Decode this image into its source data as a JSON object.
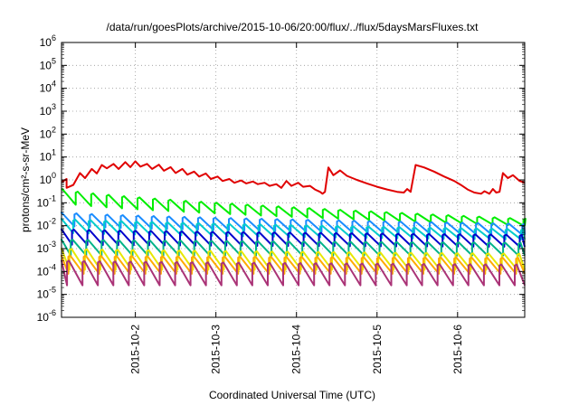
{
  "chart_data": {
    "type": "line",
    "title": "/data/run/goesPlots/archive/2015-10-06/20:00/flux/../flux/5daysMarsFluxes.txt",
    "xlabel": "Coordinated Universal Time (UTC)",
    "ylabel": "protons/cm²-s-sr-MeV",
    "scale": {
      "y": "log"
    },
    "grid": true,
    "legend": "none",
    "ylim": [
      1e-06,
      1000000.0
    ],
    "y_ticks": [
      {
        "value": 1e-06,
        "base": "10",
        "exp": "-6"
      },
      {
        "value": 1e-05,
        "base": "10",
        "exp": "-5"
      },
      {
        "value": 0.0001,
        "base": "10",
        "exp": "-4"
      },
      {
        "value": 0.001,
        "base": "10",
        "exp": "-3"
      },
      {
        "value": 0.01,
        "base": "10",
        "exp": "-2"
      },
      {
        "value": 0.1,
        "base": "10",
        "exp": "-1"
      },
      {
        "value": 1,
        "base": "10",
        "exp": "0"
      },
      {
        "value": 10.0,
        "base": "10",
        "exp": "1"
      },
      {
        "value": 100.0,
        "base": "10",
        "exp": "2"
      },
      {
        "value": 1000.0,
        "base": "10",
        "exp": "3"
      },
      {
        "value": 10000.0,
        "base": "10",
        "exp": "4"
      },
      {
        "value": 100000.0,
        "base": "10",
        "exp": "5"
      },
      {
        "value": 1000000.0,
        "base": "10",
        "exp": "6"
      }
    ],
    "xlim": [
      "2015-10-01T02:00",
      "2015-10-06T20:00"
    ],
    "x_ticks": [
      {
        "value": "2015-10-02T00:00",
        "label": "2015-10-2"
      },
      {
        "value": "2015-10-03T00:00",
        "label": "2015-10-3"
      },
      {
        "value": "2015-10-04T00:00",
        "label": "2015-10-4"
      },
      {
        "value": "2015-10-05T00:00",
        "label": "2015-10-5"
      },
      {
        "value": "2015-10-06T00:00",
        "label": "2015-10-6"
      }
    ],
    "series": [
      {
        "color": "#e00000",
        "points": [
          [
            "2015-10-01T02:00",
            0.8
          ],
          [
            "2015-10-01T03:30",
            1.1
          ],
          [
            "2015-10-01T03:30",
            0.45
          ],
          [
            "2015-10-01T05:30",
            0.6
          ],
          [
            "2015-10-01T07:30",
            2.0
          ],
          [
            "2015-10-01T09:00",
            1.2
          ],
          [
            "2015-10-01T11:00",
            3.0
          ],
          [
            "2015-10-01T12:30",
            1.9
          ],
          [
            "2015-10-01T14:00",
            4.5
          ],
          [
            "2015-10-01T15:30",
            3.2
          ],
          [
            "2015-10-01T17:30",
            5.0
          ],
          [
            "2015-10-01T19:00",
            3.0
          ],
          [
            "2015-10-01T21:00",
            6.0
          ],
          [
            "2015-10-01T22:30",
            3.6
          ],
          [
            "2015-10-02T00:00",
            6.5
          ],
          [
            "2015-10-02T01:30",
            3.8
          ],
          [
            "2015-10-02T03:30",
            5.0
          ],
          [
            "2015-10-02T05:00",
            3.0
          ],
          [
            "2015-10-02T07:00",
            4.6
          ],
          [
            "2015-10-02T08:30",
            2.5
          ],
          [
            "2015-10-02T10:30",
            3.6
          ],
          [
            "2015-10-02T12:00",
            2.0
          ],
          [
            "2015-10-02T14:00",
            3.0
          ],
          [
            "2015-10-02T15:30",
            1.7
          ],
          [
            "2015-10-02T17:30",
            2.3
          ],
          [
            "2015-10-02T19:00",
            1.4
          ],
          [
            "2015-10-02T21:00",
            1.9
          ],
          [
            "2015-10-02T22:30",
            1.1
          ],
          [
            "2015-10-03T00:30",
            1.4
          ],
          [
            "2015-10-03T02:00",
            0.9
          ],
          [
            "2015-10-03T04:00",
            1.1
          ],
          [
            "2015-10-03T05:30",
            0.75
          ],
          [
            "2015-10-03T07:30",
            0.95
          ],
          [
            "2015-10-03T09:00",
            0.7
          ],
          [
            "2015-10-03T11:00",
            0.85
          ],
          [
            "2015-10-03T12:30",
            0.65
          ],
          [
            "2015-10-03T14:30",
            0.75
          ],
          [
            "2015-10-03T16:00",
            0.55
          ],
          [
            "2015-10-03T18:00",
            0.65
          ],
          [
            "2015-10-03T19:30",
            0.45
          ],
          [
            "2015-10-03T21:00",
            0.9
          ],
          [
            "2015-10-03T22:30",
            0.55
          ],
          [
            "2015-10-04T00:30",
            0.75
          ],
          [
            "2015-10-04T02:00",
            0.5
          ],
          [
            "2015-10-04T04:00",
            0.55
          ],
          [
            "2015-10-04T05:30",
            0.38
          ],
          [
            "2015-10-04T07:00",
            0.3
          ],
          [
            "2015-10-04T07:45",
            0.25
          ],
          [
            "2015-10-04T08:30",
            0.3
          ],
          [
            "2015-10-04T09:30",
            3.5
          ],
          [
            "2015-10-04T11:00",
            1.6
          ],
          [
            "2015-10-04T13:00",
            2.6
          ],
          [
            "2015-10-04T15:00",
            1.5
          ],
          [
            "2015-10-04T18:00",
            1.0
          ],
          [
            "2015-10-04T21:00",
            0.7
          ],
          [
            "2015-10-05T00:00",
            0.5
          ],
          [
            "2015-10-05T03:00",
            0.38
          ],
          [
            "2015-10-05T06:00",
            0.3
          ],
          [
            "2015-10-05T08:00",
            0.28
          ],
          [
            "2015-10-05T09:00",
            0.4
          ],
          [
            "2015-10-05T10:00",
            0.3
          ],
          [
            "2015-10-05T11:30",
            4.5
          ],
          [
            "2015-10-05T14:00",
            3.5
          ],
          [
            "2015-10-05T17:00",
            2.3
          ],
          [
            "2015-10-05T20:00",
            1.4
          ],
          [
            "2015-10-05T23:00",
            0.9
          ],
          [
            "2015-10-06T01:00",
            0.6
          ],
          [
            "2015-10-06T03:00",
            0.38
          ],
          [
            "2015-10-06T05:00",
            0.28
          ],
          [
            "2015-10-06T07:00",
            0.25
          ],
          [
            "2015-10-06T08:00",
            0.32
          ],
          [
            "2015-10-06T09:30",
            0.25
          ],
          [
            "2015-10-06T10:30",
            0.4
          ],
          [
            "2015-10-06T11:30",
            0.28
          ],
          [
            "2015-10-06T12:30",
            0.3
          ],
          [
            "2015-10-06T13:30",
            2.0
          ],
          [
            "2015-10-06T15:00",
            1.2
          ],
          [
            "2015-10-06T16:30",
            1.6
          ],
          [
            "2015-10-06T18:30",
            0.9
          ],
          [
            "2015-10-06T20:00",
            0.75
          ]
        ]
      },
      {
        "color": "#00ee00",
        "peak": 0.4,
        "trough": 0.1,
        "peak_end": 0.02,
        "trough_end": 0.01
      },
      {
        "color": "#1a8cff",
        "peak": 0.038,
        "trough": 0.01,
        "peak_end": 0.012,
        "trough_end": 0.004
      },
      {
        "color": "#00cccc",
        "peak": 0.02,
        "trough": 0.005,
        "peak_end": 0.007,
        "trough_end": 0.0025
      },
      {
        "color": "#0000cc",
        "peak": 0.007,
        "trough": 0.0015,
        "peak_end": 0.004,
        "trough_end": 0.0012
      },
      {
        "color": "#00b388",
        "peak": 0.0025,
        "trough": 0.0005,
        "peak_end": 0.0018,
        "trough_end": 0.0005
      },
      {
        "color": "#e8e800",
        "peak": 0.001,
        "trough": 0.00012,
        "peak_end": 0.0006,
        "trough_end": 0.00012
      },
      {
        "color": "#ffaa00",
        "peak": 0.0005,
        "trough": 8e-05,
        "peak_end": 0.0004,
        "trough_end": 8e-05
      },
      {
        "color": "#aa3377",
        "peak": 0.0003,
        "trough": 2.5e-05,
        "peak_end": 0.0002,
        "trough_end": 2.5e-05
      }
    ]
  }
}
